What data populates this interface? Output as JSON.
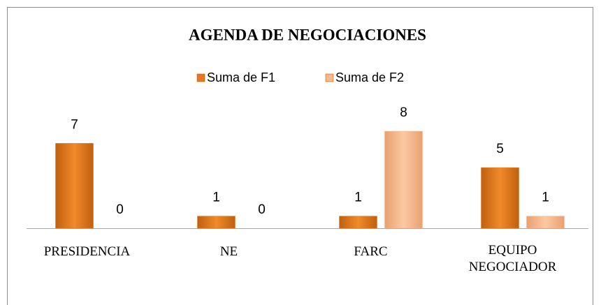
{
  "chart_data": {
    "type": "bar",
    "title": "AGENDA DE NEGOCIACIONES",
    "categories": [
      "PRESIDENCIA",
      "NE",
      "FARC",
      "EQUIPO NEGOCIADOR"
    ],
    "series": [
      {
        "name": "Suma de F1",
        "color": "#e07b20",
        "values": [
          7,
          1,
          1,
          5
        ]
      },
      {
        "name": "Suma de F2",
        "color": "#f7b98a",
        "values": [
          0,
          0,
          8,
          1
        ]
      }
    ],
    "legend": "top"
  }
}
